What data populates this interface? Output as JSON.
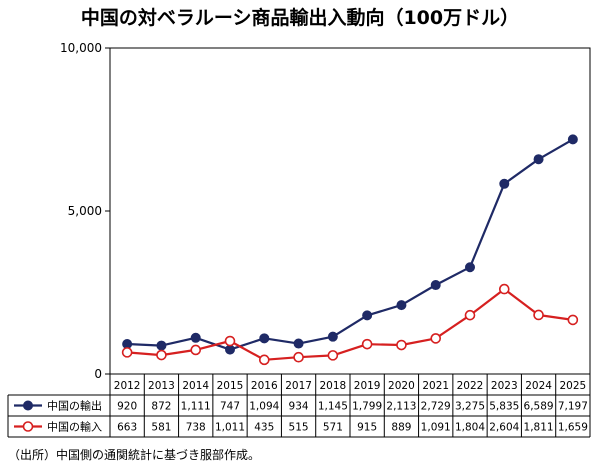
{
  "chart_data": {
    "type": "line",
    "title": "中国の対ベラルーシ商品輸出入動向（100万ドル）",
    "categories": [
      "2012",
      "2013",
      "2014",
      "2015",
      "2016",
      "2017",
      "2018",
      "2019",
      "2020",
      "2021",
      "2022",
      "2023",
      "2024",
      "2025"
    ],
    "series": [
      {
        "name": "中国の輸出",
        "color": "#1f2a66",
        "marker": "filled-circle",
        "values": [
          920,
          872,
          1111,
          747,
          1094,
          934,
          1145,
          1799,
          2113,
          2729,
          3275,
          5835,
          6589,
          7197
        ],
        "labels": [
          "920",
          "872",
          "1,111",
          "747",
          "1,094",
          "934",
          "1,145",
          "1,799",
          "2,113",
          "2,729",
          "3,275",
          "5,835",
          "6,589",
          "7,197"
        ]
      },
      {
        "name": "中国の輸入",
        "color": "#d62020",
        "marker": "open-circle",
        "values": [
          663,
          581,
          738,
          1011,
          435,
          515,
          571,
          915,
          889,
          1091,
          1804,
          2604,
          1811,
          1659
        ],
        "labels": [
          "663",
          "581",
          "738",
          "1,011",
          "435",
          "515",
          "571",
          "915",
          "889",
          "1,091",
          "1,804",
          "2,604",
          "1,811",
          "1,659"
        ]
      }
    ],
    "ylim": [
      0,
      10000
    ],
    "yticks": [
      0,
      5000,
      10000
    ],
    "ytick_labels": [
      "0",
      "5,000",
      "10,000"
    ],
    "grid": false,
    "legend": "data-table-below"
  },
  "footnote": "（出所）中国側の通関統計に基づき服部作成。"
}
